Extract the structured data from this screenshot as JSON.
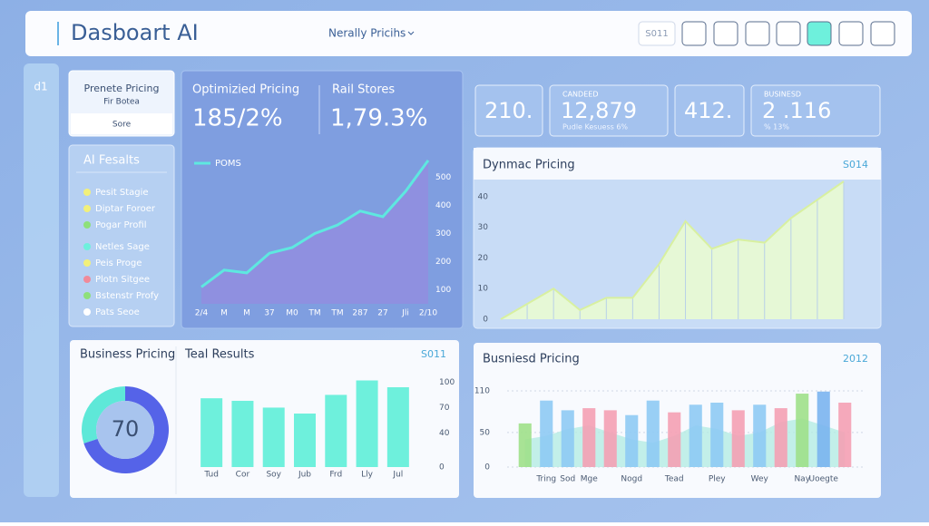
{
  "header": {
    "title": "Dasboart AI",
    "nav": "Nerally  Pricihs",
    "button": "S011"
  },
  "side": {
    "label": "d1"
  },
  "card": {
    "title": "Prenete Pricing",
    "subtitle": "Fir Botea",
    "button": "Sore"
  },
  "results": {
    "title": "AI Fesalts",
    "items": [
      {
        "label": "Pesit Stagie",
        "color": "#f2f07a"
      },
      {
        "label": "Diptar Foroer",
        "color": "#f2f07a"
      },
      {
        "label": "Pogar Profil",
        "color": "#8ee07a"
      },
      {
        "label": "Netles Sage",
        "color": "#6ef0dc"
      },
      {
        "label": "Peis Proge",
        "color": "#f2f07a"
      },
      {
        "label": "Plotn Sitgee",
        "color": "#f08a9a"
      },
      {
        "label": "Bstenstr Profy",
        "color": "#8ee07a"
      },
      {
        "label": "Pats Seoe",
        "color": "#ffffff"
      }
    ]
  },
  "kpis": [
    {
      "value": "210."
    },
    {
      "label": "CANDEED",
      "value": "12,879",
      "sub": "Pudle Kesuess 6%"
    },
    {
      "value": "412."
    },
    {
      "label": "BUSINESD",
      "value": "2 .116",
      "sub": "% 13%"
    }
  ],
  "chart_data": [
    {
      "type": "area",
      "title": "Optimizied Pricing",
      "headline": "185/2%",
      "title2": "Rail Stores",
      "headline2": "1,79.3%",
      "legend": "POMS",
      "color": "#5ee8e0",
      "fill": "#8f90e0",
      "categories": [
        "2/4",
        "M",
        "M",
        "37",
        "M0",
        "TM",
        "TM",
        "287",
        "27",
        "Jli",
        "2/10"
      ],
      "values": [
        110,
        170,
        160,
        230,
        250,
        300,
        330,
        380,
        360,
        450,
        560
      ],
      "ylim": [
        50,
        550
      ],
      "yticks": [
        100,
        200,
        300,
        400,
        500
      ]
    },
    {
      "type": "area",
      "title": "Dynmac Pricing",
      "corner": "S014",
      "color": "#d8f0a0",
      "fill": "#e6f8d6",
      "values": [
        0,
        5,
        10,
        3,
        7,
        7,
        18,
        32,
        23,
        26,
        25,
        33,
        39,
        45
      ],
      "ylim": [
        0,
        45
      ],
      "yticks": [
        0,
        10,
        20,
        30,
        40
      ]
    },
    {
      "type": "donut",
      "title": "Business Pricing",
      "values": [
        70,
        30
      ],
      "colors": [
        "#5563e8",
        "#5ee8d8"
      ]
    },
    {
      "type": "bar",
      "title": "Teal Results",
      "corner": "S011",
      "color": "#6ef0dc",
      "categories": [
        "Tud",
        "Cor",
        "Soy",
        "Jub",
        "Frd",
        "Lly",
        "Jul"
      ],
      "values": [
        81,
        78,
        70,
        63,
        85,
        102,
        94
      ],
      "ylim": [
        0,
        110
      ],
      "yticks": [
        0,
        40,
        70,
        100
      ]
    },
    {
      "type": "bar",
      "title": "Busniesd Pricing",
      "corner": "2012",
      "grid": true,
      "categories": [
        null,
        "Tring",
        "Sod",
        "Mge",
        null,
        "Nogd",
        null,
        "Tead",
        null,
        "Pley",
        null,
        "Wey",
        null,
        "Nay",
        "Uoegte",
        null
      ],
      "values": [
        63,
        96,
        82,
        85,
        82,
        75,
        96,
        79,
        90,
        93,
        82,
        90,
        85,
        106,
        109,
        93
      ],
      "colors": [
        "#9ee08a",
        "#8ecaf4",
        "#8ecaf4",
        "#f4a0b4",
        "#f4a0b4",
        "#8ecaf4",
        "#8ecaf4",
        "#f4a0b4",
        "#8ecaf4",
        "#8ecaf4",
        "#f4a0b4",
        "#8ecaf4",
        "#f4a0b4",
        "#9ee08a",
        "#7ab4f0",
        "#f4a0b4"
      ],
      "area": {
        "color": "#b4ece4",
        "values": [
          40,
          45,
          55,
          60,
          50,
          40,
          35,
          45,
          60,
          55,
          45,
          50,
          65,
          70,
          60,
          50
        ]
      },
      "ylim": [
        0,
        110
      ],
      "yticks": [
        0,
        50,
        110
      ]
    }
  ]
}
